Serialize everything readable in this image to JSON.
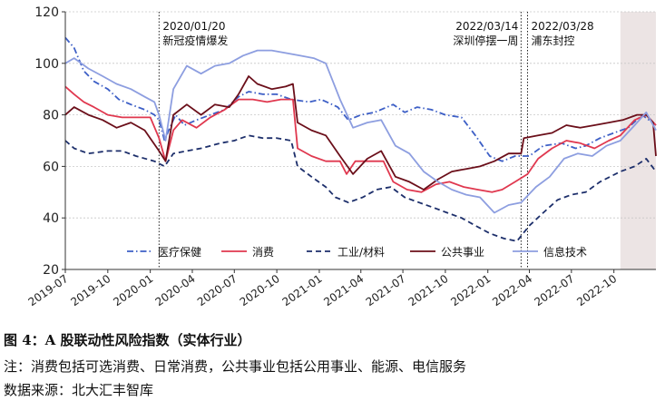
{
  "chart_data": {
    "type": "line",
    "ylim": [
      20,
      120
    ],
    "yticks": [
      20,
      40,
      60,
      80,
      100,
      120
    ],
    "xlim": [
      "2019-07-01",
      "2022-12-31"
    ],
    "xticks": [
      {
        "date": "2019-07-01",
        "label": "2019-07"
      },
      {
        "date": "2019-10-01",
        "label": "2019-10"
      },
      {
        "date": "2020-01-01",
        "label": "2020-01"
      },
      {
        "date": "2020-04-01",
        "label": "2020-04"
      },
      {
        "date": "2020-07-01",
        "label": "2020-07"
      },
      {
        "date": "2020-10-01",
        "label": "2020-10"
      },
      {
        "date": "2021-01-01",
        "label": "2021-01"
      },
      {
        "date": "2021-04-01",
        "label": "2021-04"
      },
      {
        "date": "2021-07-01",
        "label": "2021-07"
      },
      {
        "date": "2021-10-01",
        "label": "2021-10"
      },
      {
        "date": "2022-01-01",
        "label": "2022-01"
      },
      {
        "date": "2022-04-01",
        "label": "2022-04"
      },
      {
        "date": "2022-07-01",
        "label": "2022-07"
      },
      {
        "date": "2022-10-01",
        "label": "2022-10"
      }
    ],
    "grid": "horizontal-dashed",
    "legend": "bottom",
    "shaded_region": {
      "start": "2022-10-15",
      "end": "2022-12-31",
      "color": "#ece4e4"
    },
    "events": [
      {
        "date": "2020-01-20",
        "date_label": "2020/01/20",
        "text": "新冠疫情爆发"
      },
      {
        "date": "2022-03-14",
        "date_label": "2022/03/14",
        "text": "深圳停摆一周"
      },
      {
        "date": "2022-03-28",
        "date_label": "2022/03/28",
        "text": "浦东封控"
      }
    ],
    "series": [
      {
        "name": "医疗保健",
        "color": "#3d5fc6",
        "dash": "7,3,1.5,3",
        "points": [
          [
            "2019-07-01",
            110
          ],
          [
            "2019-07-20",
            106
          ],
          [
            "2019-08-10",
            97
          ],
          [
            "2019-09-01",
            93
          ],
          [
            "2019-10-01",
            90
          ],
          [
            "2019-10-25",
            86
          ],
          [
            "2019-11-20",
            84
          ],
          [
            "2019-12-20",
            82
          ],
          [
            "2020-01-10",
            80
          ],
          [
            "2020-01-20",
            78
          ],
          [
            "2020-02-01",
            70
          ],
          [
            "2020-02-10",
            74
          ],
          [
            "2020-02-25",
            80
          ],
          [
            "2020-03-15",
            76
          ],
          [
            "2020-04-10",
            78
          ],
          [
            "2020-05-10",
            80
          ],
          [
            "2020-06-10",
            82
          ],
          [
            "2020-07-10",
            87
          ],
          [
            "2020-08-01",
            89
          ],
          [
            "2020-09-01",
            88
          ],
          [
            "2020-10-01",
            88
          ],
          [
            "2020-11-01",
            86
          ],
          [
            "2020-12-10",
            85
          ],
          [
            "2021-01-05",
            86
          ],
          [
            "2021-02-10",
            83
          ],
          [
            "2021-03-05",
            78
          ],
          [
            "2021-04-01",
            80
          ],
          [
            "2021-05-01",
            81
          ],
          [
            "2021-06-10",
            84
          ],
          [
            "2021-07-05",
            81
          ],
          [
            "2021-08-01",
            83
          ],
          [
            "2021-09-01",
            82
          ],
          [
            "2021-10-01",
            80
          ],
          [
            "2021-11-05",
            79
          ],
          [
            "2021-12-05",
            72
          ],
          [
            "2022-01-05",
            64
          ],
          [
            "2022-02-01",
            62
          ],
          [
            "2022-03-01",
            64
          ],
          [
            "2022-04-01",
            64
          ],
          [
            "2022-05-01",
            68
          ],
          [
            "2022-06-10",
            69
          ],
          [
            "2022-07-10",
            67
          ],
          [
            "2022-08-01",
            68
          ],
          [
            "2022-09-01",
            71
          ],
          [
            "2022-10-01",
            73
          ],
          [
            "2022-11-01",
            75
          ],
          [
            "2022-12-01",
            80
          ],
          [
            "2022-12-31",
            76
          ]
        ]
      },
      {
        "name": "消费",
        "color": "#e0384f",
        "dash": "",
        "points": [
          [
            "2019-07-01",
            91
          ],
          [
            "2019-07-20",
            88
          ],
          [
            "2019-08-10",
            85
          ],
          [
            "2019-09-01",
            83
          ],
          [
            "2019-10-01",
            80
          ],
          [
            "2019-11-01",
            79
          ],
          [
            "2019-12-01",
            79
          ],
          [
            "2020-01-01",
            79
          ],
          [
            "2020-01-20",
            71
          ],
          [
            "2020-02-03",
            62
          ],
          [
            "2020-02-20",
            74
          ],
          [
            "2020-03-10",
            78
          ],
          [
            "2020-04-10",
            75
          ],
          [
            "2020-05-10",
            79
          ],
          [
            "2020-06-10",
            82
          ],
          [
            "2020-07-10",
            86
          ],
          [
            "2020-08-10",
            86
          ],
          [
            "2020-09-10",
            85
          ],
          [
            "2020-10-10",
            86
          ],
          [
            "2020-11-05",
            86
          ],
          [
            "2020-11-15",
            67
          ],
          [
            "2020-12-15",
            64
          ],
          [
            "2021-01-15",
            62
          ],
          [
            "2021-02-15",
            62
          ],
          [
            "2021-03-01",
            57
          ],
          [
            "2021-03-20",
            62
          ],
          [
            "2021-04-20",
            62
          ],
          [
            "2021-05-20",
            62
          ],
          [
            "2021-06-10",
            54
          ],
          [
            "2021-07-10",
            51
          ],
          [
            "2021-08-10",
            50
          ],
          [
            "2021-09-10",
            53
          ],
          [
            "2021-10-10",
            54
          ],
          [
            "2021-11-10",
            52
          ],
          [
            "2021-12-10",
            51
          ],
          [
            "2022-01-10",
            50
          ],
          [
            "2022-02-01",
            51
          ],
          [
            "2022-03-01",
            54
          ],
          [
            "2022-03-28",
            57
          ],
          [
            "2022-04-20",
            63
          ],
          [
            "2022-05-20",
            67
          ],
          [
            "2022-06-20",
            70
          ],
          [
            "2022-07-20",
            69
          ],
          [
            "2022-08-20",
            67
          ],
          [
            "2022-09-20",
            70
          ],
          [
            "2022-10-15",
            72
          ],
          [
            "2022-11-15",
            78
          ],
          [
            "2022-12-10",
            80
          ],
          [
            "2022-12-31",
            76
          ]
        ]
      },
      {
        "name": "工业/材料",
        "color": "#1d2f6b",
        "dash": "6,4",
        "points": [
          [
            "2019-07-01",
            70
          ],
          [
            "2019-07-20",
            67
          ],
          [
            "2019-08-20",
            65
          ],
          [
            "2019-10-01",
            66
          ],
          [
            "2019-11-01",
            66
          ],
          [
            "2019-12-01",
            64
          ],
          [
            "2020-01-10",
            62
          ],
          [
            "2020-02-01",
            60
          ],
          [
            "2020-02-20",
            65
          ],
          [
            "2020-03-20",
            66
          ],
          [
            "2020-04-20",
            67
          ],
          [
            "2020-06-01",
            69
          ],
          [
            "2020-07-01",
            70
          ],
          [
            "2020-08-01",
            72
          ],
          [
            "2020-09-01",
            71
          ],
          [
            "2020-10-01",
            71
          ],
          [
            "2020-11-01",
            70
          ],
          [
            "2020-11-15",
            60
          ],
          [
            "2020-12-15",
            56
          ],
          [
            "2021-01-15",
            52
          ],
          [
            "2021-02-05",
            48
          ],
          [
            "2021-03-05",
            46
          ],
          [
            "2021-04-05",
            48
          ],
          [
            "2021-05-05",
            51
          ],
          [
            "2021-06-05",
            52
          ],
          [
            "2021-07-05",
            48
          ],
          [
            "2021-08-05",
            46
          ],
          [
            "2021-09-05",
            44
          ],
          [
            "2021-10-05",
            42
          ],
          [
            "2021-11-05",
            40
          ],
          [
            "2021-12-05",
            37
          ],
          [
            "2022-01-05",
            34
          ],
          [
            "2022-02-05",
            32
          ],
          [
            "2022-03-05",
            31
          ],
          [
            "2022-03-14",
            33
          ],
          [
            "2022-04-01",
            37
          ],
          [
            "2022-05-01",
            42
          ],
          [
            "2022-06-01",
            47
          ],
          [
            "2022-07-01",
            49
          ],
          [
            "2022-08-01",
            50
          ],
          [
            "2022-09-01",
            54
          ],
          [
            "2022-10-15",
            58
          ],
          [
            "2022-11-15",
            60
          ],
          [
            "2022-12-10",
            63
          ],
          [
            "2022-12-31",
            58
          ]
        ]
      },
      {
        "name": "公共事业",
        "color": "#6b0f1a",
        "dash": "",
        "points": [
          [
            "2019-07-01",
            80
          ],
          [
            "2019-07-20",
            83
          ],
          [
            "2019-08-20",
            80
          ],
          [
            "2019-09-20",
            78
          ],
          [
            "2019-10-20",
            75
          ],
          [
            "2019-11-20",
            77
          ],
          [
            "2019-12-20",
            74
          ],
          [
            "2020-01-20",
            66
          ],
          [
            "2020-02-03",
            62
          ],
          [
            "2020-02-20",
            80
          ],
          [
            "2020-03-20",
            84
          ],
          [
            "2020-04-20",
            80
          ],
          [
            "2020-05-20",
            84
          ],
          [
            "2020-06-20",
            83
          ],
          [
            "2020-07-10",
            88
          ],
          [
            "2020-08-01",
            95
          ],
          [
            "2020-08-20",
            92
          ],
          [
            "2020-09-20",
            90
          ],
          [
            "2020-10-20",
            91
          ],
          [
            "2020-11-05",
            92
          ],
          [
            "2020-11-15",
            77
          ],
          [
            "2020-12-15",
            74
          ],
          [
            "2021-01-15",
            72
          ],
          [
            "2021-02-15",
            64
          ],
          [
            "2021-03-15",
            57
          ],
          [
            "2021-04-15",
            63
          ],
          [
            "2021-05-15",
            66
          ],
          [
            "2021-06-15",
            56
          ],
          [
            "2021-07-15",
            54
          ],
          [
            "2021-08-15",
            51
          ],
          [
            "2021-09-15",
            55
          ],
          [
            "2021-10-15",
            58
          ],
          [
            "2021-11-15",
            59
          ],
          [
            "2021-12-15",
            60
          ],
          [
            "2022-01-15",
            62
          ],
          [
            "2022-02-15",
            65
          ],
          [
            "2022-03-14",
            65
          ],
          [
            "2022-03-20",
            71
          ],
          [
            "2022-04-20",
            72
          ],
          [
            "2022-05-20",
            73
          ],
          [
            "2022-06-20",
            76
          ],
          [
            "2022-07-20",
            75
          ],
          [
            "2022-08-20",
            76
          ],
          [
            "2022-09-20",
            77
          ],
          [
            "2022-10-20",
            78
          ],
          [
            "2022-11-20",
            80
          ],
          [
            "2022-12-10",
            80
          ],
          [
            "2022-12-25",
            77
          ],
          [
            "2022-12-31",
            64
          ]
        ]
      },
      {
        "name": "信息技术",
        "color": "#8d9ee0",
        "dash": "",
        "points": [
          [
            "2019-07-01",
            100
          ],
          [
            "2019-07-20",
            102
          ],
          [
            "2019-08-20",
            98
          ],
          [
            "2019-09-20",
            95
          ],
          [
            "2019-10-20",
            92
          ],
          [
            "2019-11-20",
            90
          ],
          [
            "2019-12-20",
            87
          ],
          [
            "2020-01-10",
            85
          ],
          [
            "2020-01-20",
            80
          ],
          [
            "2020-02-03",
            70
          ],
          [
            "2020-02-20",
            90
          ],
          [
            "2020-03-20",
            99
          ],
          [
            "2020-04-20",
            96
          ],
          [
            "2020-05-20",
            99
          ],
          [
            "2020-06-20",
            100
          ],
          [
            "2020-07-20",
            103
          ],
          [
            "2020-08-20",
            105
          ],
          [
            "2020-09-20",
            105
          ],
          [
            "2020-10-20",
            104
          ],
          [
            "2020-11-20",
            103
          ],
          [
            "2020-12-20",
            102
          ],
          [
            "2021-01-15",
            100
          ],
          [
            "2021-02-15",
            86
          ],
          [
            "2021-03-15",
            75
          ],
          [
            "2021-04-15",
            77
          ],
          [
            "2021-05-15",
            78
          ],
          [
            "2021-06-15",
            68
          ],
          [
            "2021-07-15",
            65
          ],
          [
            "2021-08-15",
            58
          ],
          [
            "2021-09-15",
            54
          ],
          [
            "2021-10-15",
            51
          ],
          [
            "2021-11-15",
            49
          ],
          [
            "2021-12-15",
            48
          ],
          [
            "2022-01-15",
            42
          ],
          [
            "2022-02-15",
            45
          ],
          [
            "2022-03-14",
            46
          ],
          [
            "2022-04-15",
            52
          ],
          [
            "2022-05-15",
            56
          ],
          [
            "2022-06-15",
            63
          ],
          [
            "2022-07-15",
            65
          ],
          [
            "2022-08-15",
            64
          ],
          [
            "2022-09-15",
            68
          ],
          [
            "2022-10-15",
            70
          ],
          [
            "2022-11-15",
            76
          ],
          [
            "2022-12-10",
            81
          ],
          [
            "2022-12-31",
            74
          ]
        ]
      }
    ]
  },
  "caption": {
    "title": "图 4：A 股联动性风险指数（实体行业）",
    "note": "注：消费包括可选消费、日常消费，公共事业包括公用事业、能源、电信服务",
    "source": "数据来源：北大汇丰智库"
  }
}
